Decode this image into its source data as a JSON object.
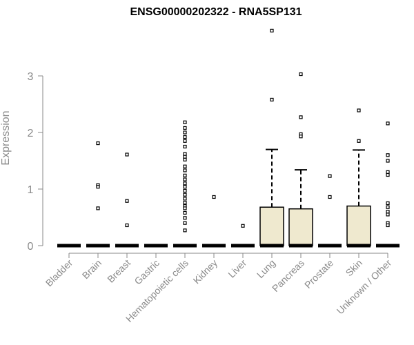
{
  "chart_data": {
    "type": "box",
    "title": "ENSG00000202322 - RNA5SP131",
    "xlabel": "",
    "ylabel": "Expression",
    "ylim": [
      0,
      3.8
    ],
    "yticks": [
      0,
      1,
      2,
      3
    ],
    "grid": false,
    "box_fill": "#efe9cf",
    "categories": [
      {
        "name": "Bladder",
        "q1": 0,
        "median": 0,
        "q3": 0,
        "whisker_low": 0,
        "whisker_high": 0,
        "outliers": []
      },
      {
        "name": "Brain",
        "q1": 0,
        "median": 0,
        "q3": 0,
        "whisker_low": 0,
        "whisker_high": 0,
        "outliers": [
          1.81,
          1.07,
          1.04,
          0.66
        ]
      },
      {
        "name": "Breast",
        "q1": 0,
        "median": 0,
        "q3": 0,
        "whisker_low": 0,
        "whisker_high": 0,
        "outliers": [
          1.61,
          0.79,
          0.36
        ]
      },
      {
        "name": "Gastric",
        "q1": 0,
        "median": 0,
        "q3": 0,
        "whisker_low": 0,
        "whisker_high": 0,
        "outliers": []
      },
      {
        "name": "Hematopoietic cells",
        "q1": 0,
        "median": 0,
        "q3": 0,
        "whisker_low": 0,
        "whisker_high": 0,
        "outliers": [
          2.18,
          2.08,
          2.0,
          1.92,
          1.85,
          1.75,
          1.62,
          1.57,
          1.52,
          1.4,
          1.33,
          1.24,
          1.17,
          1.1,
          1.04,
          0.97,
          0.9,
          0.83,
          0.76,
          0.7,
          0.66,
          0.58,
          0.49,
          0.4,
          0.27
        ]
      },
      {
        "name": "Kidney",
        "q1": 0,
        "median": 0,
        "q3": 0,
        "whisker_low": 0,
        "whisker_high": 0,
        "outliers": [
          0.86
        ]
      },
      {
        "name": "Liver",
        "q1": 0,
        "median": 0,
        "q3": 0,
        "whisker_low": 0,
        "whisker_high": 0,
        "outliers": [
          0.35
        ]
      },
      {
        "name": "Lung",
        "q1": 0,
        "median": 0,
        "q3": 0.68,
        "whisker_low": 0,
        "whisker_high": 1.7,
        "outliers": [
          3.8,
          2.58
        ]
      },
      {
        "name": "Pancreas",
        "q1": 0,
        "median": 0,
        "q3": 0.65,
        "whisker_low": 0,
        "whisker_high": 1.34,
        "outliers": [
          3.03,
          2.27,
          1.97,
          1.93
        ]
      },
      {
        "name": "Prostate",
        "q1": 0,
        "median": 0,
        "q3": 0,
        "whisker_low": 0,
        "whisker_high": 0,
        "outliers": [
          1.23,
          0.86
        ]
      },
      {
        "name": "Skin",
        "q1": 0,
        "median": 0,
        "q3": 0.7,
        "whisker_low": 0,
        "whisker_high": 1.69,
        "outliers": [
          2.39,
          1.85
        ]
      },
      {
        "name": "Unknown / Other",
        "q1": 0,
        "median": 0,
        "q3": 0,
        "whisker_low": 0,
        "whisker_high": 0,
        "outliers": [
          2.16,
          1.6,
          1.5,
          1.3,
          1.25,
          0.75,
          0.68,
          0.6,
          0.55,
          0.4,
          0.36
        ]
      }
    ]
  }
}
